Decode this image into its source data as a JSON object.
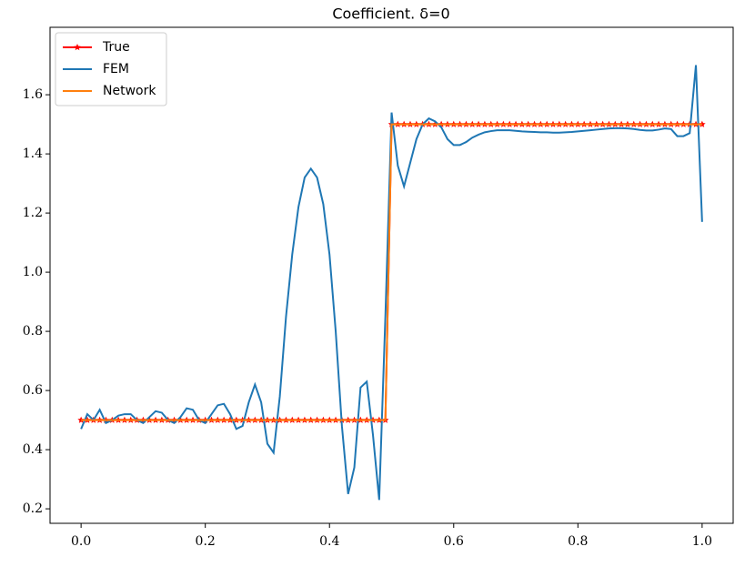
{
  "chart_data": {
    "type": "line",
    "title": "Coefficient. δ=0",
    "x": [
      0,
      0.01,
      0.02,
      0.03,
      0.04,
      0.05,
      0.06,
      0.07,
      0.08,
      0.09,
      0.1,
      0.11,
      0.12,
      0.13,
      0.14,
      0.15,
      0.16,
      0.17,
      0.18,
      0.19,
      0.2,
      0.21,
      0.22,
      0.23,
      0.24,
      0.25,
      0.26,
      0.27,
      0.28,
      0.29,
      0.3,
      0.31,
      0.32,
      0.33,
      0.34,
      0.35,
      0.36,
      0.37,
      0.38,
      0.39,
      0.4,
      0.41,
      0.42,
      0.43,
      0.44,
      0.45,
      0.46,
      0.47,
      0.48,
      0.49,
      0.5,
      0.51,
      0.52,
      0.53,
      0.54,
      0.55,
      0.56,
      0.57,
      0.58,
      0.59,
      0.6,
      0.61,
      0.62,
      0.63,
      0.64,
      0.65,
      0.66,
      0.67,
      0.68,
      0.69,
      0.7,
      0.71,
      0.72,
      0.73,
      0.74,
      0.75,
      0.76,
      0.77,
      0.78,
      0.79,
      0.8,
      0.81,
      0.82,
      0.83,
      0.84,
      0.85,
      0.86,
      0.87,
      0.88,
      0.89,
      0.9,
      0.91,
      0.92,
      0.93,
      0.94,
      0.95,
      0.96,
      0.97,
      0.98,
      0.99,
      1
    ],
    "series": [
      {
        "name": "True",
        "color": "#ff0000",
        "marker": "*",
        "values": [
          0.5,
          0.5,
          0.5,
          0.5,
          0.5,
          0.5,
          0.5,
          0.5,
          0.5,
          0.5,
          0.5,
          0.5,
          0.5,
          0.5,
          0.5,
          0.5,
          0.5,
          0.5,
          0.5,
          0.5,
          0.5,
          0.5,
          0.5,
          0.5,
          0.5,
          0.5,
          0.5,
          0.5,
          0.5,
          0.5,
          0.5,
          0.5,
          0.5,
          0.5,
          0.5,
          0.5,
          0.5,
          0.5,
          0.5,
          0.5,
          0.5,
          0.5,
          0.5,
          0.5,
          0.5,
          0.5,
          0.5,
          0.5,
          0.5,
          0.5,
          1.5,
          1.5,
          1.5,
          1.5,
          1.5,
          1.5,
          1.5,
          1.5,
          1.5,
          1.5,
          1.5,
          1.5,
          1.5,
          1.5,
          1.5,
          1.5,
          1.5,
          1.5,
          1.5,
          1.5,
          1.5,
          1.5,
          1.5,
          1.5,
          1.5,
          1.5,
          1.5,
          1.5,
          1.5,
          1.5,
          1.5,
          1.5,
          1.5,
          1.5,
          1.5,
          1.5,
          1.5,
          1.5,
          1.5,
          1.5,
          1.5,
          1.5,
          1.5,
          1.5,
          1.5,
          1.5,
          1.5,
          1.5,
          1.5,
          1.5,
          1.5
        ]
      },
      {
        "name": "FEM",
        "color": "#1f77b4",
        "values": [
          0.47,
          0.52,
          0.5,
          0.535,
          0.49,
          0.5,
          0.515,
          0.52,
          0.52,
          0.5,
          0.49,
          0.51,
          0.53,
          0.525,
          0.5,
          0.49,
          0.51,
          0.54,
          0.535,
          0.5,
          0.49,
          0.52,
          0.55,
          0.555,
          0.52,
          0.47,
          0.48,
          0.56,
          0.62,
          0.56,
          0.42,
          0.39,
          0.58,
          0.85,
          1.06,
          1.22,
          1.32,
          1.35,
          1.32,
          1.23,
          1.06,
          0.8,
          0.48,
          0.25,
          0.34,
          0.61,
          0.63,
          0.45,
          0.23,
          0.85,
          1.54,
          1.36,
          1.29,
          1.37,
          1.45,
          1.5,
          1.52,
          1.51,
          1.49,
          1.45,
          1.43,
          1.43,
          1.44,
          1.455,
          1.465,
          1.473,
          1.477,
          1.48,
          1.48,
          1.48,
          1.478,
          1.476,
          1.475,
          1.474,
          1.473,
          1.473,
          1.472,
          1.472,
          1.473,
          1.474,
          1.476,
          1.478,
          1.48,
          1.482,
          1.484,
          1.486,
          1.487,
          1.487,
          1.486,
          1.484,
          1.481,
          1.479,
          1.479,
          1.482,
          1.486,
          1.484,
          1.46,
          1.46,
          1.47,
          1.7,
          1.17
        ]
      },
      {
        "name": "Network",
        "color": "#ff7f0e",
        "values": [
          0.5,
          0.5,
          0.5,
          0.5,
          0.5,
          0.5,
          0.5,
          0.5,
          0.5,
          0.5,
          0.5,
          0.5,
          0.5,
          0.5,
          0.5,
          0.5,
          0.5,
          0.5,
          0.5,
          0.5,
          0.5,
          0.5,
          0.5,
          0.5,
          0.5,
          0.5,
          0.5,
          0.5,
          0.5,
          0.5,
          0.5,
          0.5,
          0.5,
          0.5,
          0.5,
          0.5,
          0.5,
          0.5,
          0.5,
          0.5,
          0.5,
          0.5,
          0.5,
          0.5,
          0.5,
          0.5,
          0.5,
          0.5,
          0.5,
          0.5,
          1.5,
          1.5,
          1.5,
          1.5,
          1.5,
          1.5,
          1.5,
          1.5,
          1.5,
          1.5,
          1.5,
          1.5,
          1.5,
          1.5,
          1.5,
          1.5,
          1.5,
          1.5,
          1.5,
          1.5,
          1.5,
          1.5,
          1.5,
          1.5,
          1.5,
          1.5,
          1.5,
          1.5,
          1.5,
          1.5,
          1.5,
          1.5,
          1.5,
          1.5,
          1.5,
          1.5,
          1.5,
          1.5,
          1.5,
          1.5,
          1.5,
          1.5,
          1.5,
          1.5,
          1.5,
          1.5,
          1.5,
          1.5,
          1.5,
          1.5,
          1.5
        ]
      }
    ],
    "xlim": [
      -0.05,
      1.05
    ],
    "xticks": [
      {
        "value": 0,
        "label": "0.0"
      },
      0.2,
      0.4,
      0.6,
      0.8,
      {
        "value": 1,
        "label": "1.0"
      }
    ],
    "ylim": [
      0.151,
      1.828
    ],
    "yticks": [
      0.2,
      0.4,
      0.6,
      0.8,
      {
        "value": 1,
        "label": "1.0"
      },
      1.2,
      1.4,
      1.6
    ],
    "grid": false,
    "legend": "upper left"
  }
}
